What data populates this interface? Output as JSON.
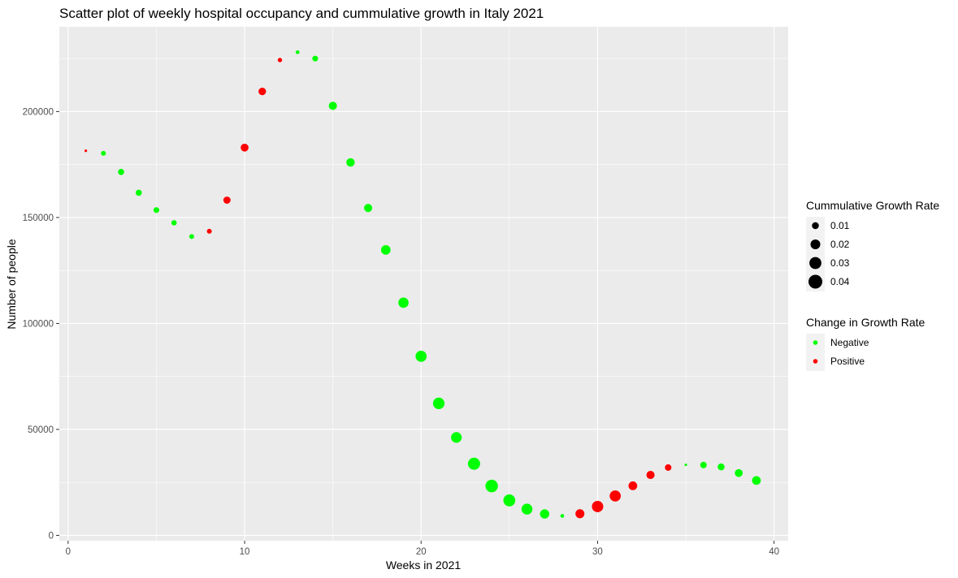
{
  "chart_data": {
    "type": "scatter",
    "title": "Scatter plot of weekly hospital occupancy and cummulative growth in Italy 2021",
    "xlabel": "Weeks in 2021",
    "ylabel": "Number of people",
    "xlim": [
      -0.5,
      40.8
    ],
    "ylim": [
      -2500,
      240000
    ],
    "x_ticks": [
      0,
      10,
      20,
      30,
      40
    ],
    "y_ticks": [
      0,
      50000,
      100000,
      150000,
      200000
    ],
    "x_tick_labels": [
      "0",
      "10",
      "20",
      "30",
      "40"
    ],
    "y_tick_labels": [
      "0",
      "50000",
      "100000",
      "150000",
      "200000"
    ],
    "grid": true,
    "legend_position": "right",
    "colors": {
      "Negative": "#00ff00",
      "Positive": "#ff0000"
    },
    "size_legend": {
      "title": "Cummulative Growth Rate",
      "values": [
        0.01,
        0.02,
        0.03,
        0.04
      ],
      "labels": [
        "0.01",
        "0.02",
        "0.03",
        "0.04"
      ]
    },
    "color_legend": {
      "title": "Change in Growth Rate",
      "labels": [
        "Negative",
        "Positive"
      ]
    },
    "points": [
      {
        "x": 1,
        "y": 181500,
        "rate": 0.001,
        "change": "Positive"
      },
      {
        "x": 2,
        "y": 180300,
        "rate": 0.005,
        "change": "Negative"
      },
      {
        "x": 3,
        "y": 171500,
        "rate": 0.008,
        "change": "Negative"
      },
      {
        "x": 4,
        "y": 161700,
        "rate": 0.008,
        "change": "Negative"
      },
      {
        "x": 5,
        "y": 153500,
        "rate": 0.007,
        "change": "Negative"
      },
      {
        "x": 6,
        "y": 147500,
        "rate": 0.006,
        "change": "Negative"
      },
      {
        "x": 7,
        "y": 141000,
        "rate": 0.005,
        "change": "Negative"
      },
      {
        "x": 8,
        "y": 143500,
        "rate": 0.005,
        "change": "Positive"
      },
      {
        "x": 9,
        "y": 158200,
        "rate": 0.011,
        "change": "Positive"
      },
      {
        "x": 10,
        "y": 183000,
        "rate": 0.013,
        "change": "Positive"
      },
      {
        "x": 11,
        "y": 209500,
        "rate": 0.012,
        "change": "Positive"
      },
      {
        "x": 12,
        "y": 224300,
        "rate": 0.004,
        "change": "Positive"
      },
      {
        "x": 13,
        "y": 228000,
        "rate": 0.003,
        "change": "Negative"
      },
      {
        "x": 14,
        "y": 225000,
        "rate": 0.007,
        "change": "Negative"
      },
      {
        "x": 15,
        "y": 202700,
        "rate": 0.014,
        "change": "Negative"
      },
      {
        "x": 16,
        "y": 176000,
        "rate": 0.015,
        "change": "Negative"
      },
      {
        "x": 17,
        "y": 154500,
        "rate": 0.014,
        "change": "Negative"
      },
      {
        "x": 18,
        "y": 134700,
        "rate": 0.019,
        "change": "Negative"
      },
      {
        "x": 19,
        "y": 109800,
        "rate": 0.022,
        "change": "Negative"
      },
      {
        "x": 20,
        "y": 84500,
        "rate": 0.026,
        "change": "Negative"
      },
      {
        "x": 21,
        "y": 62300,
        "rate": 0.028,
        "change": "Negative"
      },
      {
        "x": 22,
        "y": 46200,
        "rate": 0.024,
        "change": "Negative"
      },
      {
        "x": 23,
        "y": 33800,
        "rate": 0.031,
        "change": "Negative"
      },
      {
        "x": 24,
        "y": 23300,
        "rate": 0.033,
        "change": "Negative"
      },
      {
        "x": 25,
        "y": 16500,
        "rate": 0.03,
        "change": "Negative"
      },
      {
        "x": 26,
        "y": 12400,
        "rate": 0.025,
        "change": "Negative"
      },
      {
        "x": 27,
        "y": 10100,
        "rate": 0.018,
        "change": "Negative"
      },
      {
        "x": 28,
        "y": 9200,
        "rate": 0.003,
        "change": "Negative"
      },
      {
        "x": 29,
        "y": 10200,
        "rate": 0.017,
        "change": "Positive"
      },
      {
        "x": 30,
        "y": 13600,
        "rate": 0.027,
        "change": "Positive"
      },
      {
        "x": 31,
        "y": 18600,
        "rate": 0.026,
        "change": "Positive"
      },
      {
        "x": 32,
        "y": 23400,
        "rate": 0.016,
        "change": "Positive"
      },
      {
        "x": 33,
        "y": 28500,
        "rate": 0.014,
        "change": "Positive"
      },
      {
        "x": 34,
        "y": 32000,
        "rate": 0.009,
        "change": "Positive"
      },
      {
        "x": 35,
        "y": 33300,
        "rate": 0.001,
        "change": "Negative"
      },
      {
        "x": 36,
        "y": 33200,
        "rate": 0.009,
        "change": "Negative"
      },
      {
        "x": 37,
        "y": 32300,
        "rate": 0.01,
        "change": "Negative"
      },
      {
        "x": 38,
        "y": 29400,
        "rate": 0.013,
        "change": "Negative"
      },
      {
        "x": 39,
        "y": 25900,
        "rate": 0.016,
        "change": "Negative"
      }
    ]
  }
}
